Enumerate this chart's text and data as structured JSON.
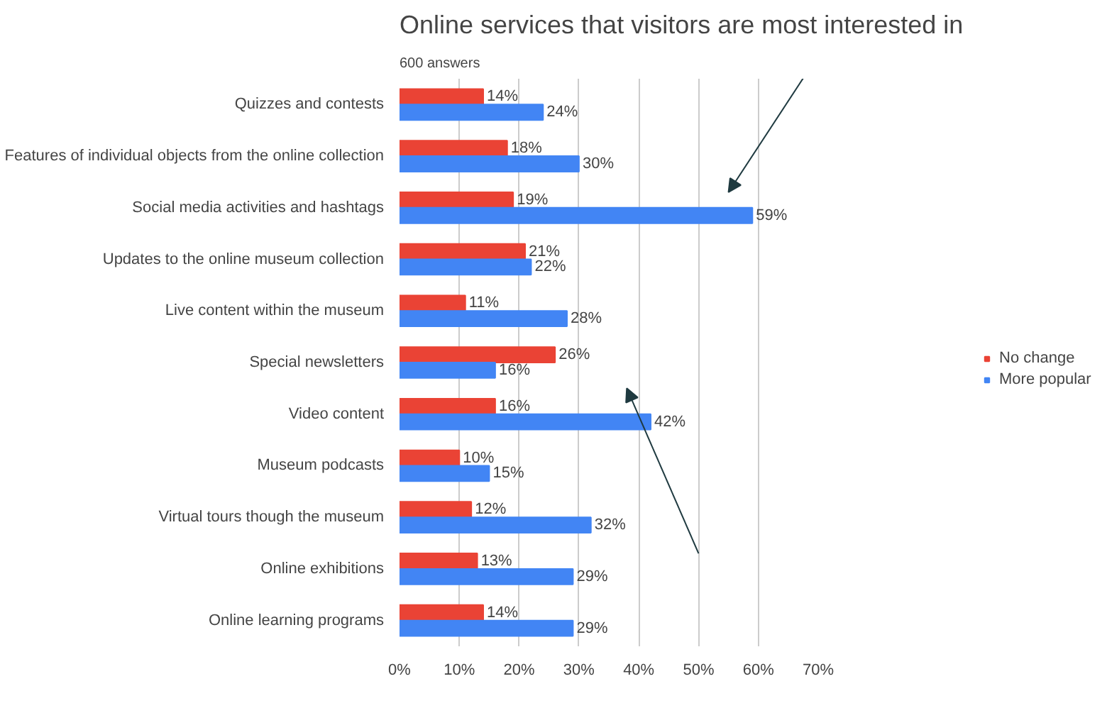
{
  "chart_data": {
    "type": "bar",
    "orientation": "horizontal",
    "title": "Online services that visitors are most interested in",
    "subtitle": "600 answers",
    "categories": [
      "Quizzes and contests",
      "Features of individual objects from the online collection",
      "Social media activities and hashtags",
      "Updates to the online museum collection",
      "Live content within the museum",
      "Special newsletters",
      "Video content",
      "Museum podcasts",
      "Virtual tours though the museum",
      "Online exhibitions",
      "Online learning programs"
    ],
    "series": [
      {
        "name": "No change",
        "color": "#ea4335",
        "values": [
          14,
          18,
          19,
          21,
          11,
          26,
          16,
          10,
          12,
          13,
          14
        ],
        "value_labels": [
          "14%",
          "18%",
          "19%",
          "21%",
          "11%",
          "26%",
          "16%",
          "10%",
          "12%",
          "13%",
          "14%"
        ]
      },
      {
        "name": "More popular",
        "color": "#4285f4",
        "values": [
          24,
          30,
          59,
          22,
          28,
          16,
          42,
          15,
          32,
          29,
          29
        ],
        "value_labels": [
          "24%",
          "30%",
          "59%",
          "22%",
          "28%",
          "16%",
          "42%",
          "15%",
          "32%",
          "29%",
          "29%"
        ]
      }
    ],
    "xlim": [
      0,
      70
    ],
    "xticks": [
      {
        "value": 0,
        "label": "0%"
      },
      {
        "value": 10,
        "label": "10%"
      },
      {
        "value": 20,
        "label": "20%"
      },
      {
        "value": 30,
        "label": "30%"
      },
      {
        "value": 40,
        "label": "40%"
      },
      {
        "value": 50,
        "label": "50%"
      },
      {
        "value": 60,
        "label": "60%"
      },
      {
        "value": 70,
        "label": "70%"
      }
    ],
    "grid": "x",
    "legend": "right"
  }
}
